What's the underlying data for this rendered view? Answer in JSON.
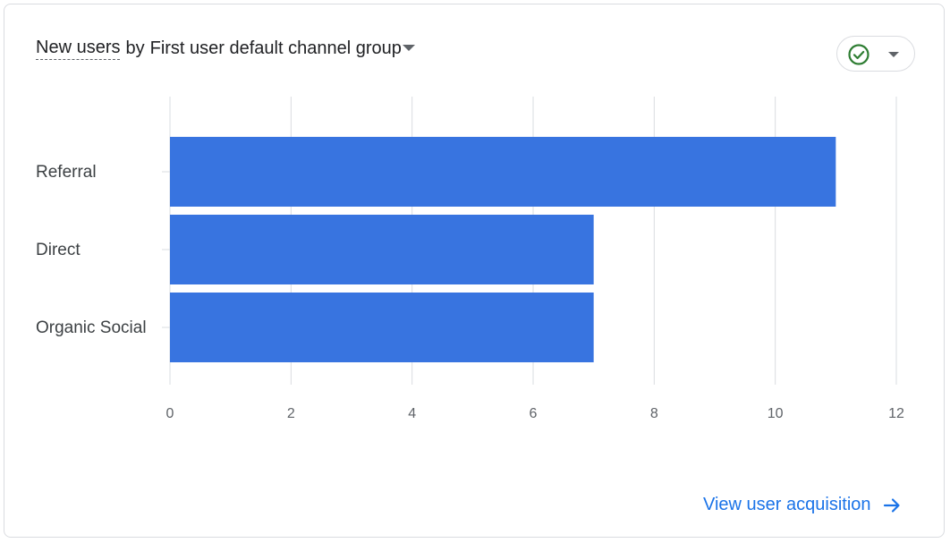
{
  "header": {
    "metric_label": "New users",
    "by_label": "by",
    "dimension_label": "First user default channel group"
  },
  "footer": {
    "link_label": "View user acquisition"
  },
  "icons": {
    "status": "check-circle-icon",
    "dropdown": "caret-down-icon",
    "link_arrow": "arrow-right-icon"
  },
  "colors": {
    "bar": "#3874e0",
    "status_check": "#2e7d32",
    "link": "#1a73e8"
  },
  "chart_data": {
    "type": "bar",
    "orientation": "horizontal",
    "title": "New users by First user default channel group",
    "categories": [
      "Referral",
      "Direct",
      "Organic Social"
    ],
    "values": [
      11,
      7,
      7
    ],
    "xlabel": "",
    "ylabel": "",
    "xlim": [
      0,
      12
    ],
    "xticks": [
      "0",
      "2",
      "4",
      "6",
      "8",
      "10",
      "12"
    ],
    "grid": true
  }
}
